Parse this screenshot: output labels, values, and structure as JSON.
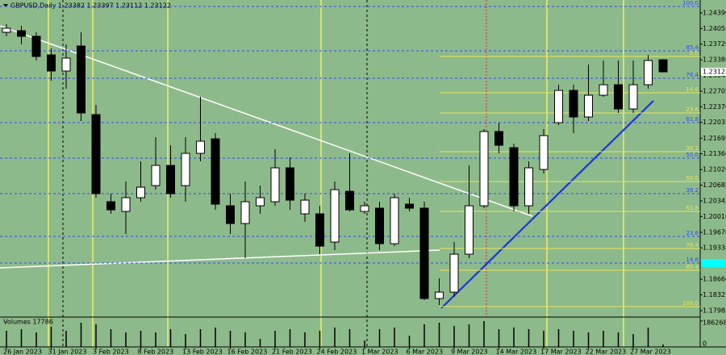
{
  "chart_data": {
    "type": "candlestick",
    "title": "GBPUSD,Daily  1.23382 1.23397 1.23112 1.23122",
    "up_color": "#ffffff",
    "down_color": "#000000",
    "categories": [
      "26 Jan 2023",
      null,
      null,
      "31 Jan 2023",
      null,
      null,
      "3 Feb 2023",
      null,
      null,
      "8 Feb 2023",
      null,
      null,
      "13 Feb 2023",
      null,
      null,
      "16 Feb 2023",
      null,
      null,
      "21 Feb 2023",
      null,
      null,
      "24 Feb 2023",
      null,
      null,
      "1 Mar 2023",
      null,
      null,
      "6 Mar 2023",
      null,
      null,
      "9 Mar 2023",
      null,
      null,
      "14 Mar 2023",
      null,
      null,
      "17 Mar 2023",
      null,
      null,
      "22 Mar 2023",
      null,
      null,
      "27 Mar 2023",
      null,
      null
    ],
    "open": [
      1.23973,
      1.24008,
      1.23887,
      1.23487,
      1.2314,
      1.23678,
      1.22203,
      1.20328,
      1.20119,
      1.20415,
      1.20675,
      1.21109,
      1.20675,
      1.21369,
      1.21682,
      1.20241,
      1.19859,
      1.20241,
      1.20328,
      1.21057,
      1.20067,
      1.20067,
      1.1946,
      1.20553,
      1.20119,
      1.20189,
      1.19425,
      1.20276,
      1.20189,
      1.18245,
      1.18383,
      1.19199,
      1.20241,
      1.21838,
      1.21491,
      1.20241,
      1.21022,
      1.22029,
      1.22723,
      1.22151,
      1.22619,
      1.22845,
      1.22324,
      1.22845,
      1.23382
    ],
    "high": [
      1.24147,
      1.24112,
      1.23973,
      1.23626,
      1.23713,
      1.23973,
      1.22411,
      1.20501,
      1.20762,
      1.21196,
      1.21717,
      1.21543,
      1.21717,
      1.22585,
      1.21803,
      1.20501,
      1.20762,
      1.20675,
      1.21456,
      1.21283,
      1.20501,
      1.20241,
      1.20762,
      1.21369,
      1.20328,
      1.20328,
      1.20501,
      1.20415,
      1.20328,
      1.18679,
      1.1946,
      1.21109,
      1.2189,
      1.22029,
      1.21578,
      1.21196,
      1.2189,
      1.22845,
      1.22845,
      1.23279,
      1.23366,
      1.23366,
      1.23366,
      1.23487,
      1.23397
    ],
    "low": [
      1.23887,
      1.23713,
      1.23366,
      1.22932,
      1.22758,
      1.22064,
      1.20415,
      1.20067,
      1.19633,
      1.20328,
      1.20588,
      1.20415,
      1.20328,
      1.21196,
      1.20154,
      1.19633,
      1.19113,
      1.20067,
      1.20241,
      1.20154,
      1.19894,
      1.19199,
      1.19286,
      1.20119,
      1.20067,
      1.19286,
      1.19373,
      1.20119,
      1.1821,
      1.18106,
      1.18279,
      1.19113,
      1.20189,
      1.21369,
      1.20119,
      1.20067,
      1.20935,
      1.21977,
      1.21803,
      1.22064,
      1.22585,
      1.22237,
      1.22237,
      1.22758,
      1.23112
    ],
    "close": [
      1.2406,
      1.23887,
      1.23453,
      1.2314,
      1.23418,
      1.22237,
      1.20501,
      1.20154,
      1.20415,
      1.2064,
      1.21109,
      1.20501,
      1.21369,
      1.2163,
      1.20276,
      1.19859,
      1.20328,
      1.20415,
      1.21057,
      1.20362,
      1.20362,
      1.19373,
      1.20588,
      1.20154,
      1.20241,
      1.19425,
      1.20415,
      1.20189,
      1.18245,
      1.18383,
      1.19199,
      1.20241,
      1.21838,
      1.21543,
      1.20241,
      1.21057,
      1.21751,
      1.22723,
      1.22151,
      1.22619,
      1.22845,
      1.22324,
      1.22845,
      1.23366,
      1.23122
    ],
    "ylim": [
      1.17846,
      1.24668
    ],
    "yticks": [
      {
        "value": 1.2439,
        "label": "1.24390"
      },
      1.24055,
      {
        "value": 1.2372,
        "label": "1.23720"
      },
      {
        "value": 1.2338,
        "label": "1.23380"
      },
      1.23045,
      1.22705,
      {
        "value": 1.2237,
        "label": "1.22370"
      },
      1.22035,
      1.21695,
      {
        "value": 1.2136,
        "label": "1.21360"
      },
      {
        "value": 1.2102,
        "label": "1.21020"
      },
      1.20685,
      1.20345,
      {
        "value": 1.2001,
        "label": "1.20010"
      },
      {
        "value": 1.1967,
        "label": "1.19670"
      },
      1.19335,
      {
        "value": 1.1866,
        "label": "1.18660"
      },
      1.18325,
      1.17985
    ],
    "fib_sets": [
      {
        "color": "#2f4bff",
        "levels": [
          {
            "name": "100.0",
            "price": 1.24529
          },
          {
            "name": "85.4",
            "price": 1.23574
          },
          {
            "name": "76.4",
            "price": 1.22984
          },
          {
            "name": "61.8",
            "price": 1.2203
          },
          {
            "name": "50.0",
            "price": 1.21266
          },
          {
            "name": "38.2",
            "price": 1.20502
          },
          {
            "name": "23.6",
            "price": 1.19582
          },
          {
            "name": "14.6",
            "price": 1.19009
          }
        ]
      },
      {
        "color": "#e6e65a",
        "levels": [
          {
            "name": "0.0",
            "price": 1.23453
          },
          {
            "name": "14.6",
            "price": 1.22672
          },
          {
            "name": "23.6",
            "price": 1.22237
          },
          {
            "name": "38.2",
            "price": 1.21405
          },
          {
            "name": "50.0",
            "price": 1.20762
          },
          {
            "name": "61.8",
            "price": 1.2012
          },
          {
            "name": "76.4",
            "price": 1.19321
          },
          {
            "name": "85.4",
            "price": 1.18853
          },
          {
            "name": "100.0",
            "price": 1.18072
          }
        ]
      }
    ],
    "volume": {
      "title": "Volumes 17786",
      "values": [
        116400,
        128100,
        104800,
        145500,
        116400,
        174600,
        163000,
        128100,
        104800,
        116400,
        104800,
        128100,
        93100,
        128100,
        139700,
        116400,
        104800,
        58200,
        116400,
        128100,
        104800,
        116400,
        139700,
        128100,
        46600,
        128100,
        139700,
        81500,
        163000,
        174600,
        151300,
        163000,
        186268,
        128100,
        139700,
        128100,
        116400,
        128100,
        116400,
        104800,
        116400,
        104800,
        93100,
        139700,
        17786
      ],
      "ylim": [
        0,
        215000
      ],
      "yticks": [
        186268,
        0
      ]
    }
  }
}
